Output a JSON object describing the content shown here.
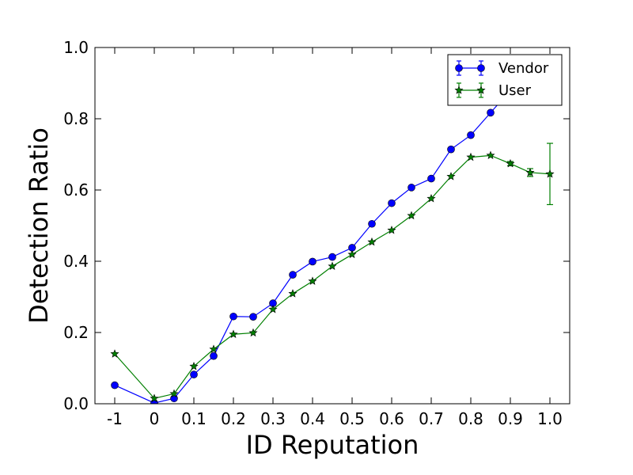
{
  "chart_data": {
    "type": "line",
    "xlabel": "ID Reputation",
    "ylabel": "Detection Ratio",
    "categories": [
      "-1",
      "0",
      "0.1",
      "0.2",
      "0.3",
      "0.4",
      "0.5",
      "0.6",
      "0.7",
      "0.8",
      "0.9",
      "1.0"
    ],
    "x_positions": [
      -1,
      0,
      0.05,
      0.1,
      0.15,
      0.2,
      0.25,
      0.3,
      0.35,
      0.4,
      0.45,
      0.5,
      0.55,
      0.6,
      0.65,
      0.7,
      0.75,
      0.8,
      0.85,
      0.9,
      0.95,
      1.0
    ],
    "ylim": [
      0,
      1.0
    ],
    "yticks": [
      "0.0",
      "0.2",
      "0.4",
      "0.6",
      "0.8",
      "1.0"
    ],
    "grid": false,
    "legend_position": "top-right",
    "series": [
      {
        "name": "Vendor",
        "color": "#0000ff",
        "marker": "circle",
        "x": [
          -1,
          0,
          0.05,
          0.1,
          0.15,
          0.2,
          0.25,
          0.3,
          0.35,
          0.4,
          0.45,
          0.5,
          0.55,
          0.6,
          0.65,
          0.7,
          0.75,
          0.8,
          0.85,
          0.9
        ],
        "y": [
          0.052,
          0.002,
          0.015,
          0.082,
          0.134,
          0.245,
          0.244,
          0.282,
          0.362,
          0.399,
          0.412,
          0.438,
          0.505,
          0.563,
          0.607,
          0.632,
          0.714,
          0.754,
          0.817,
          0.88
        ]
      },
      {
        "name": "User",
        "color": "#007f00",
        "marker": "star",
        "x": [
          -1,
          0,
          0.05,
          0.1,
          0.15,
          0.2,
          0.25,
          0.3,
          0.35,
          0.4,
          0.45,
          0.5,
          0.55,
          0.6,
          0.65,
          0.7,
          0.75,
          0.8,
          0.85,
          0.9,
          0.95,
          1.0
        ],
        "y": [
          0.14,
          0.015,
          0.028,
          0.105,
          0.153,
          0.195,
          0.199,
          0.265,
          0.309,
          0.344,
          0.386,
          0.419,
          0.454,
          0.487,
          0.528,
          0.576,
          0.638,
          0.692,
          0.697,
          0.674,
          0.649,
          0.645
        ],
        "error": [
          0,
          0,
          0,
          0,
          0,
          0,
          0,
          0,
          0,
          0,
          0,
          0,
          0,
          0,
          0,
          0,
          0,
          0,
          0,
          0.006,
          0.011,
          0.086
        ]
      }
    ]
  }
}
